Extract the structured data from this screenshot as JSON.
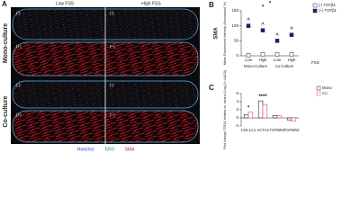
{
  "panel_a": {
    "letter": "A",
    "columns": [
      "Low FSS",
      "High FSS"
    ],
    "rows": [
      "Mono-culture",
      "Co-culture"
    ],
    "treatments": [
      "(-)",
      "(+)"
    ],
    "stains": [
      "Hoechst",
      "ERG",
      "SMA"
    ]
  },
  "chart_data": [
    {
      "type": "scatter",
      "letter": "B",
      "title": "SMA",
      "ylabel": "Mean Fluorescent Intensity (Normalized, %)",
      "xlabel": "FSS",
      "categories": [
        "Low",
        "High",
        "Low",
        "High"
      ],
      "groups": [
        "Mono-Culture",
        "Co-Culture"
      ],
      "series": [
        {
          "name": "(-) TGFβ1",
          "color": "#ffffff",
          "values": [
            2,
            5,
            5,
            5
          ]
        },
        {
          "name": "(+) TGFβ1",
          "color": "#1f1f6b",
          "values": [
            100,
            85,
            50,
            70
          ]
        }
      ],
      "ylim": [
        0,
        150
      ],
      "yticks": [
        0,
        50,
        100,
        150
      ],
      "annotations": [
        "^",
        "^",
        "^",
        "^",
        "*",
        "*"
      ]
    },
    {
      "type": "bar",
      "letter": "C",
      "ylabel": "Fold change TGFβ1 treated vs. control (Log₂(2^-ΔΔCt))",
      "categories": [
        "COL1A1",
        "ACTA2",
        "TGFBR1",
        "TGFBR2"
      ],
      "series": [
        {
          "name": "Mono",
          "color": "#222222",
          "values": [
            0.8,
            4.2,
            0.6,
            -0.5
          ]
        },
        {
          "name": "Co",
          "color": "#e0427f",
          "values": [
            1.5,
            3.3,
            0.5,
            -0.8
          ]
        }
      ],
      "ylim": [
        -2,
        6
      ],
      "yticks": [
        -2,
        0,
        2,
        4,
        6
      ],
      "annotations": [
        "*",
        "****"
      ]
    }
  ]
}
